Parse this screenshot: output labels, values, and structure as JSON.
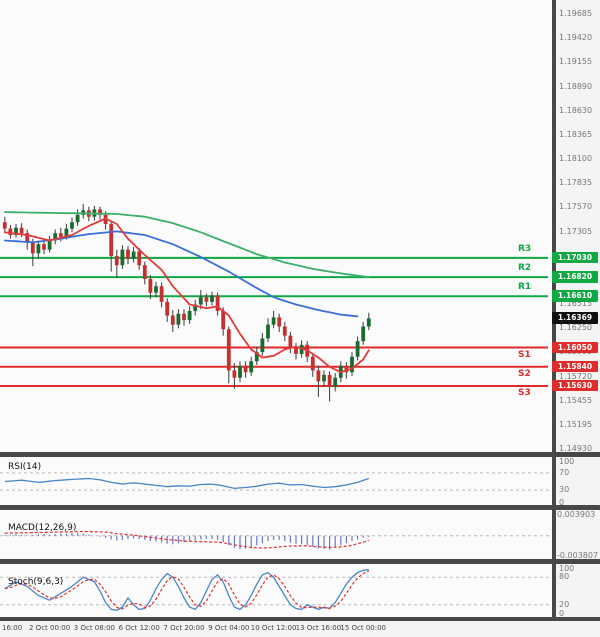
{
  "colors": {
    "up_candle": "#1a6b2f",
    "down_candle": "#c62f2f",
    "wick": "#3a3a3a",
    "ma_fast": "#e23a3a",
    "ma_mid": "#3a6fd8",
    "ma_slow": "#3cb06a",
    "resistance": "#0fa843",
    "support": "#e02b2b",
    "current_tag_bg": "#111111",
    "rsi_line": "#4a86c8",
    "macd_signal": "#e03131",
    "macd_histogram": "#6a78c9",
    "stoch_k": "#4a86c8",
    "stoch_d": "#e03131",
    "divider": "#484848"
  },
  "chart_data": {
    "type": "candlestick",
    "price_axis_range": [
      1.1493,
      1.19685
    ],
    "price_axis_ticks": [
      "1.19685",
      "1.19420",
      "1.19155",
      "1.18890",
      "1.18630",
      "1.18365",
      "1.18100",
      "1.17835",
      "1.17570",
      "1.17305",
      "1.17040",
      "1.16775",
      "1.16515",
      "1.16250",
      "1.15985",
      "1.15720",
      "1.15455",
      "1.15195",
      "1.14930"
    ],
    "time_axis": {
      "labels": [
        "16:00",
        "2 Oct 00:00",
        "3 Oct 08:00",
        "6 Oct 12:00",
        "7 Oct 20:00",
        "9 Oct 04:00",
        "10 Oct 12:00",
        "13 Oct 16:00",
        "15 Oct 00:00"
      ],
      "candle_indices": [
        0,
        8,
        16,
        24,
        32,
        40,
        48,
        56,
        64
      ]
    },
    "levels": {
      "resistance": [
        {
          "label": "R3",
          "price": "1.17030"
        },
        {
          "label": "R2",
          "price": "1.16820"
        },
        {
          "label": "R1",
          "price": "1.16610"
        }
      ],
      "support": [
        {
          "label": "S1",
          "price": "1.16050"
        },
        {
          "label": "S2",
          "price": "1.15840"
        },
        {
          "label": "S3",
          "price": "1.15630"
        }
      ],
      "current_price": "1.16369"
    },
    "candles_ohlc": [
      [
        1.1742,
        1.1748,
        1.1731,
        1.1735
      ],
      [
        1.1735,
        1.1739,
        1.1724,
        1.1728
      ],
      [
        1.1728,
        1.174,
        1.1725,
        1.1736
      ],
      [
        1.1736,
        1.1741,
        1.1726,
        1.173
      ],
      [
        1.173,
        1.1734,
        1.1712,
        1.172
      ],
      [
        1.172,
        1.1724,
        1.1694,
        1.1708
      ],
      [
        1.1708,
        1.1722,
        1.1702,
        1.1718
      ],
      [
        1.1718,
        1.1723,
        1.1707,
        1.1712
      ],
      [
        1.1712,
        1.1727,
        1.1709,
        1.1722
      ],
      [
        1.1722,
        1.1734,
        1.1718,
        1.173
      ],
      [
        1.173,
        1.1736,
        1.1721,
        1.1726
      ],
      [
        1.1726,
        1.174,
        1.1723,
        1.1735
      ],
      [
        1.1735,
        1.1747,
        1.1731,
        1.1742
      ],
      [
        1.1742,
        1.1756,
        1.1738,
        1.175
      ],
      [
        1.175,
        1.1762,
        1.1746,
        1.1755
      ],
      [
        1.1755,
        1.1759,
        1.1743,
        1.1748
      ],
      [
        1.1748,
        1.176,
        1.1744,
        1.1756
      ],
      [
        1.1756,
        1.1759,
        1.1745,
        1.175
      ],
      [
        1.175,
        1.1754,
        1.1734,
        1.174
      ],
      [
        1.174,
        1.1743,
        1.1688,
        1.1705
      ],
      [
        1.1705,
        1.1712,
        1.1681,
        1.1695
      ],
      [
        1.1695,
        1.1717,
        1.1691,
        1.1712
      ],
      [
        1.1712,
        1.1716,
        1.1696,
        1.1702
      ],
      [
        1.1702,
        1.1715,
        1.1698,
        1.171
      ],
      [
        1.171,
        1.1714,
        1.169,
        1.1695
      ],
      [
        1.1695,
        1.1699,
        1.1674,
        1.168
      ],
      [
        1.168,
        1.1684,
        1.1658,
        1.1665
      ],
      [
        1.1665,
        1.1677,
        1.166,
        1.1672
      ],
      [
        1.1672,
        1.1676,
        1.1649,
        1.1655
      ],
      [
        1.1655,
        1.1659,
        1.1633,
        1.164
      ],
      [
        1.164,
        1.1646,
        1.1622,
        1.163
      ],
      [
        1.163,
        1.1647,
        1.1626,
        1.1642
      ],
      [
        1.1642,
        1.1647,
        1.1629,
        1.1635
      ],
      [
        1.1635,
        1.165,
        1.1631,
        1.1645
      ],
      [
        1.1645,
        1.1657,
        1.164,
        1.1652
      ],
      [
        1.1652,
        1.1668,
        1.1647,
        1.166
      ],
      [
        1.166,
        1.1664,
        1.165,
        1.1655
      ],
      [
        1.1655,
        1.1666,
        1.1651,
        1.1662
      ],
      [
        1.1662,
        1.1665,
        1.164,
        1.1645
      ],
      [
        1.1645,
        1.1649,
        1.1618,
        1.1625
      ],
      [
        1.1625,
        1.1628,
        1.1566,
        1.158
      ],
      [
        1.158,
        1.1588,
        1.156,
        1.1572
      ],
      [
        1.1572,
        1.159,
        1.1567,
        1.1585
      ],
      [
        1.1585,
        1.159,
        1.1572,
        1.1578
      ],
      [
        1.1578,
        1.1595,
        1.1574,
        1.159
      ],
      [
        1.159,
        1.1606,
        1.1586,
        1.16
      ],
      [
        1.16,
        1.1621,
        1.1596,
        1.1615
      ],
      [
        1.1615,
        1.1637,
        1.1611,
        1.163
      ],
      [
        1.163,
        1.1645,
        1.1626,
        1.1638
      ],
      [
        1.1638,
        1.1642,
        1.1622,
        1.1628
      ],
      [
        1.1628,
        1.1633,
        1.1612,
        1.1618
      ],
      [
        1.1618,
        1.1622,
        1.1599,
        1.1605
      ],
      [
        1.1605,
        1.161,
        1.1592,
        1.1598
      ],
      [
        1.1598,
        1.1613,
        1.1594,
        1.1608
      ],
      [
        1.1608,
        1.1612,
        1.1589,
        1.1595
      ],
      [
        1.1595,
        1.1599,
        1.1573,
        1.158
      ],
      [
        1.158,
        1.1585,
        1.1551,
        1.1568
      ],
      [
        1.1568,
        1.158,
        1.1562,
        1.1575
      ],
      [
        1.1575,
        1.1579,
        1.1546,
        1.1562
      ],
      [
        1.1562,
        1.1577,
        1.1557,
        1.1572
      ],
      [
        1.1572,
        1.159,
        1.1567,
        1.1585
      ],
      [
        1.1585,
        1.1589,
        1.1571,
        1.1578
      ],
      [
        1.1578,
        1.16,
        1.1574,
        1.1595
      ],
      [
        1.1595,
        1.1617,
        1.1591,
        1.1612
      ],
      [
        1.1612,
        1.1633,
        1.1608,
        1.1628
      ],
      [
        1.1628,
        1.1643,
        1.1624,
        1.16369
      ]
    ],
    "moving_averages": [
      {
        "name": "slow-green",
        "color_key": "ma_slow",
        "anchors": [
          [
            0,
            1.1753
          ],
          [
            10,
            1.1752
          ],
          [
            20,
            1.1751
          ],
          [
            25,
            1.1748
          ],
          [
            30,
            1.1741
          ],
          [
            35,
            1.1731
          ],
          [
            40,
            1.1719
          ],
          [
            45,
            1.1707
          ],
          [
            50,
            1.1698
          ],
          [
            55,
            1.1691
          ],
          [
            60,
            1.1686
          ],
          [
            65,
            1.1682
          ]
        ]
      },
      {
        "name": "mid-blue",
        "color_key": "ma_mid",
        "anchors": [
          [
            0,
            1.1722
          ],
          [
            5,
            1.172
          ],
          [
            10,
            1.1724
          ],
          [
            15,
            1.1729
          ],
          [
            20,
            1.1732
          ],
          [
            25,
            1.1728
          ],
          [
            30,
            1.1718
          ],
          [
            35,
            1.1704
          ],
          [
            40,
            1.1688
          ],
          [
            45,
            1.167
          ],
          [
            48,
            1.166
          ],
          [
            52,
            1.1652
          ],
          [
            56,
            1.1646
          ],
          [
            60,
            1.1641
          ],
          [
            63,
            1.1639
          ]
        ]
      },
      {
        "name": "fast-red",
        "color_key": "ma_fast",
        "anchors": [
          [
            0,
            1.1731
          ],
          [
            4,
            1.1728
          ],
          [
            8,
            1.1722
          ],
          [
            12,
            1.1728
          ],
          [
            15,
            1.1738
          ],
          [
            18,
            1.1746
          ],
          [
            20,
            1.174
          ],
          [
            22,
            1.1724
          ],
          [
            25,
            1.1706
          ],
          [
            28,
            1.169
          ],
          [
            30,
            1.1672
          ],
          [
            33,
            1.1652
          ],
          [
            36,
            1.1648
          ],
          [
            38,
            1.165
          ],
          [
            40,
            1.164
          ],
          [
            42,
            1.162
          ],
          [
            44,
            1.1603
          ],
          [
            46,
            1.1594
          ],
          [
            48,
            1.1596
          ],
          [
            50,
            1.1603
          ],
          [
            52,
            1.1606
          ],
          [
            54,
            1.1602
          ],
          [
            56,
            1.1594
          ],
          [
            58,
            1.1584
          ],
          [
            60,
            1.1578
          ],
          [
            62,
            1.1582
          ],
          [
            64,
            1.1592
          ],
          [
            65,
            1.1602
          ]
        ]
      }
    ],
    "rsi": {
      "title": "RSI(14)",
      "range": [
        0,
        100
      ],
      "ticks": [
        "100",
        "70",
        "30",
        "0"
      ],
      "guides": [
        70,
        30
      ],
      "points": [
        [
          0,
          50
        ],
        [
          3,
          53
        ],
        [
          6,
          48
        ],
        [
          9,
          52
        ],
        [
          12,
          55
        ],
        [
          15,
          57
        ],
        [
          17,
          54
        ],
        [
          19,
          48
        ],
        [
          21,
          44
        ],
        [
          23,
          47
        ],
        [
          25,
          44
        ],
        [
          27,
          41
        ],
        [
          29,
          38
        ],
        [
          31,
          40
        ],
        [
          33,
          39
        ],
        [
          35,
          43
        ],
        [
          37,
          44
        ],
        [
          39,
          40
        ],
        [
          41,
          34
        ],
        [
          43,
          36
        ],
        [
          45,
          39
        ],
        [
          47,
          44
        ],
        [
          49,
          46
        ],
        [
          51,
          42
        ],
        [
          53,
          43
        ],
        [
          55,
          39
        ],
        [
          57,
          36
        ],
        [
          59,
          38
        ],
        [
          61,
          42
        ],
        [
          63,
          48
        ],
        [
          65,
          57
        ]
      ]
    },
    "macd": {
      "title": "MACD(12,26,9)",
      "axis_range": [
        0.003903,
        -0.003807
      ],
      "ticks": [
        "0.003903",
        "-0.003807"
      ],
      "signal_points": [
        [
          0,
          0.0005
        ],
        [
          5,
          0.0006
        ],
        [
          10,
          0.0007
        ],
        [
          14,
          0.0008
        ],
        [
          18,
          0.0007
        ],
        [
          20,
          0.0004
        ],
        [
          23,
          0.0001
        ],
        [
          26,
          -0.0003
        ],
        [
          29,
          -0.0007
        ],
        [
          32,
          -0.001
        ],
        [
          35,
          -0.0011
        ],
        [
          38,
          -0.0012
        ],
        [
          40,
          -0.0015
        ],
        [
          42,
          -0.0019
        ],
        [
          44,
          -0.0022
        ],
        [
          46,
          -0.0023
        ],
        [
          48,
          -0.0022
        ],
        [
          50,
          -0.002
        ],
        [
          52,
          -0.0019
        ],
        [
          54,
          -0.0019
        ],
        [
          56,
          -0.0021
        ],
        [
          58,
          -0.0022
        ],
        [
          60,
          -0.0021
        ],
        [
          62,
          -0.0018
        ],
        [
          64,
          -0.0012
        ],
        [
          65,
          -0.0009
        ]
      ],
      "histogram": [
        0.0002,
        0.0002,
        0.0003,
        0.0002,
        0.0001,
        0.0002,
        0.0003,
        0.0003,
        0.0002,
        0.0003,
        0.0004,
        0.0004,
        0.0005,
        0.0005,
        0.0004,
        0.0002,
        0.0,
        -0.0002,
        -0.0004,
        -0.0007,
        -0.0009,
        -0.0008,
        -0.0006,
        -0.0005,
        -0.0006,
        -0.0008,
        -0.001,
        -0.0011,
        -0.0013,
        -0.0015,
        -0.0016,
        -0.0014,
        -0.0012,
        -0.001,
        -0.0008,
        -0.0007,
        -0.0006,
        -0.0006,
        -0.0008,
        -0.0012,
        -0.0018,
        -0.0023,
        -0.0025,
        -0.0024,
        -0.0022,
        -0.0018,
        -0.0014,
        -0.001,
        -0.0008,
        -0.0008,
        -0.001,
        -0.0013,
        -0.0015,
        -0.0016,
        -0.0018,
        -0.0021,
        -0.0024,
        -0.0025,
        -0.0026,
        -0.0022,
        -0.0018,
        -0.0014,
        -0.001,
        -0.0007,
        -0.0004,
        -0.0002
      ]
    },
    "stoch": {
      "title": "Stoch(9,6,3)",
      "range": [
        0,
        100
      ],
      "ticks": [
        "100",
        "80",
        "20",
        "0"
      ],
      "guides": [
        80,
        20
      ],
      "k_points": [
        [
          0,
          55
        ],
        [
          2,
          70
        ],
        [
          4,
          60
        ],
        [
          6,
          40
        ],
        [
          8,
          30
        ],
        [
          10,
          45
        ],
        [
          12,
          60
        ],
        [
          14,
          80
        ],
        [
          16,
          70
        ],
        [
          17,
          50
        ],
        [
          18,
          25
        ],
        [
          19,
          10
        ],
        [
          20,
          8
        ],
        [
          21,
          15
        ],
        [
          22,
          35
        ],
        [
          23,
          20
        ],
        [
          24,
          10
        ],
        [
          25,
          12
        ],
        [
          26,
          30
        ],
        [
          27,
          55
        ],
        [
          28,
          75
        ],
        [
          29,
          88
        ],
        [
          30,
          80
        ],
        [
          31,
          60
        ],
        [
          32,
          35
        ],
        [
          33,
          15
        ],
        [
          34,
          10
        ],
        [
          35,
          25
        ],
        [
          36,
          50
        ],
        [
          37,
          75
        ],
        [
          38,
          85
        ],
        [
          39,
          70
        ],
        [
          40,
          40
        ],
        [
          41,
          15
        ],
        [
          42,
          10
        ],
        [
          43,
          20
        ],
        [
          44,
          40
        ],
        [
          45,
          65
        ],
        [
          46,
          85
        ],
        [
          47,
          90
        ],
        [
          48,
          80
        ],
        [
          49,
          60
        ],
        [
          50,
          40
        ],
        [
          51,
          20
        ],
        [
          52,
          12
        ],
        [
          53,
          10
        ],
        [
          54,
          20
        ],
        [
          55,
          15
        ],
        [
          56,
          10
        ],
        [
          57,
          15
        ],
        [
          58,
          12
        ],
        [
          59,
          25
        ],
        [
          60,
          45
        ],
        [
          61,
          65
        ],
        [
          62,
          80
        ],
        [
          63,
          90
        ],
        [
          64,
          95
        ],
        [
          65,
          96
        ]
      ]
    }
  }
}
